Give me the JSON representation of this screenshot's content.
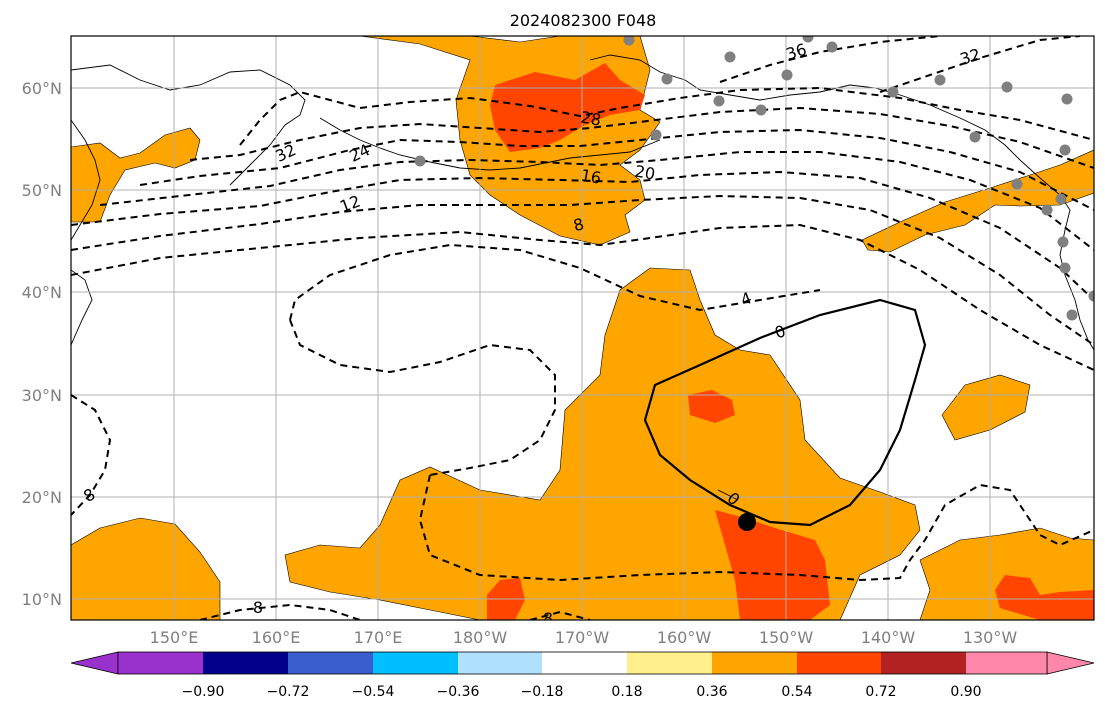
{
  "title": "2024082300 F048",
  "map": {
    "lat_ticks": [
      "10°N",
      "20°N",
      "30°N",
      "40°N",
      "50°N",
      "60°N"
    ],
    "lon_ticks": [
      "150°E",
      "160°E",
      "170°E",
      "180°W",
      "170°W",
      "160°W",
      "150°W",
      "140°W",
      "130°W"
    ],
    "contour_labels": [
      "36",
      "32",
      "32",
      "28",
      "24",
      "20",
      "16",
      "12",
      "8",
      "8",
      "8",
      "8",
      "4",
      "0",
      "0"
    ],
    "colors": {
      "orange": "#ffa500",
      "red": "#ff4500",
      "grid": "#b0b0b0",
      "station": "#808080"
    },
    "marker": "storm-center-dot"
  },
  "colorbar": {
    "ticks": [
      "−0.90",
      "−0.72",
      "−0.54",
      "−0.36",
      "−0.18",
      "0.18",
      "0.36",
      "0.54",
      "0.72",
      "0.90"
    ],
    "colors": [
      "#9932cc",
      "#00008b",
      "#3a5fcd",
      "#00bfff",
      "#b0e2ff",
      "#ffffff",
      "#fff08c",
      "#ffa500",
      "#ff4500",
      "#b22222",
      "#ff88aa"
    ]
  }
}
